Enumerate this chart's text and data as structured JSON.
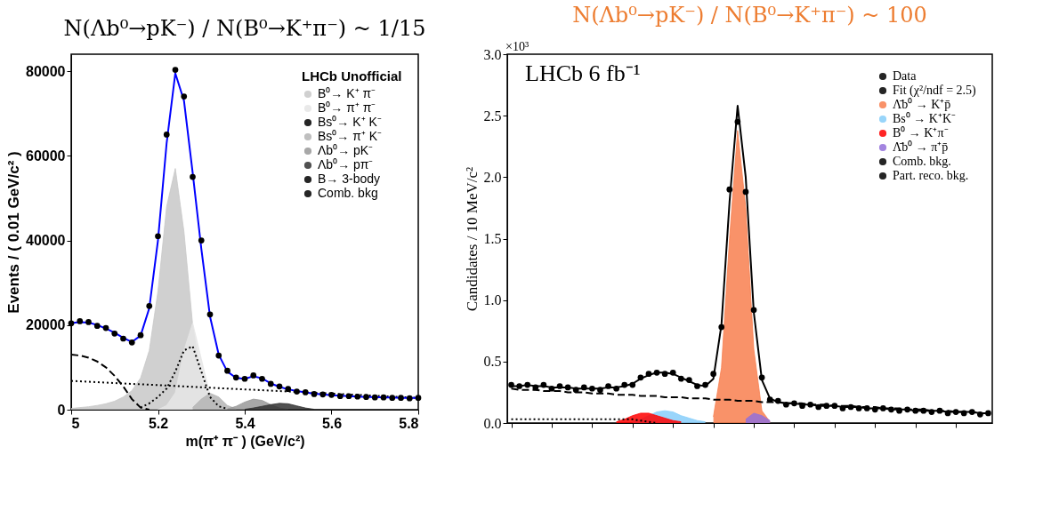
{
  "chart_data": [
    {
      "type": "line",
      "title": "N(Λb⁰→pK⁻) / N(B⁰→K⁺π⁻) ~ 1/15",
      "xlabel": "m(π⁺ π⁻ ) (GeV/c²)",
      "ylabel": "Events / ( 0.01 GeV/c² )",
      "legend_title": "LHCb Unofficial",
      "x": [
        5.0,
        5.02,
        5.04,
        5.06,
        5.08,
        5.1,
        5.12,
        5.14,
        5.16,
        5.18,
        5.2,
        5.22,
        5.24,
        5.26,
        5.28,
        5.3,
        5.32,
        5.34,
        5.36,
        5.38,
        5.4,
        5.42,
        5.44,
        5.46,
        5.48,
        5.5,
        5.52,
        5.54,
        5.56,
        5.58,
        5.6,
        5.62,
        5.64,
        5.66,
        5.68,
        5.7,
        5.72,
        5.74,
        5.76,
        5.78,
        5.8
      ],
      "series": [
        {
          "name": "B⁰→ K⁺ π⁻",
          "type": "area",
          "color": "#c8c8c8",
          "x": [
            5.0,
            5.02,
            5.04,
            5.06,
            5.08,
            5.1,
            5.12,
            5.14,
            5.16,
            5.18,
            5.2,
            5.22,
            5.24,
            5.26,
            5.28,
            5.3,
            5.32,
            5.34,
            5.36
          ],
          "values": [
            300,
            500,
            700,
            1000,
            1400,
            2000,
            3000,
            4500,
            7500,
            14000,
            28000,
            48000,
            57000,
            42000,
            20000,
            7000,
            2000,
            500,
            100
          ]
        },
        {
          "name": "B⁰→ π⁺ π⁻",
          "type": "area",
          "color": "#e6e6e6",
          "x": [
            5.2,
            5.22,
            5.24,
            5.26,
            5.28,
            5.3,
            5.32,
            5.34,
            5.36
          ],
          "values": [
            0,
            1000,
            4000,
            14000,
            20500,
            12000,
            3500,
            700,
            100
          ]
        },
        {
          "name": "Bs⁰→ K⁺ K⁻",
          "type": "line",
          "line_style": "dotted",
          "color": "#000000",
          "x": [
            5.16,
            5.18,
            5.2,
            5.22,
            5.24,
            5.26,
            5.28,
            5.3,
            5.32,
            5.34,
            5.36
          ],
          "values": [
            500,
            1500,
            3000,
            5000,
            9000,
            14000,
            15000,
            9000,
            3000,
            800,
            200
          ]
        },
        {
          "name": "Bs⁰→ π⁺ K⁻",
          "type": "area",
          "color": "#b4b4b4",
          "x": [
            5.28,
            5.3,
            5.32,
            5.34,
            5.36,
            5.38
          ],
          "values": [
            500,
            2500,
            3900,
            3000,
            1000,
            200
          ]
        },
        {
          "name": "Λb⁰→ pK⁻",
          "type": "area",
          "color": "#999999",
          "x": [
            5.36,
            5.38,
            5.4,
            5.42,
            5.44,
            5.46,
            5.48,
            5.5
          ],
          "values": [
            200,
            800,
            1800,
            2500,
            2200,
            1200,
            400,
            100
          ]
        },
        {
          "name": "Λb⁰→ pπ⁻",
          "type": "area",
          "color": "#333333",
          "x": [
            5.4,
            5.42,
            5.44,
            5.46,
            5.48,
            5.5,
            5.52,
            5.54,
            5.56
          ],
          "values": [
            100,
            400,
            800,
            1200,
            1500,
            1400,
            900,
            400,
            100
          ]
        },
        {
          "name": "B→ 3-body",
          "type": "line",
          "line_style": "dashed",
          "color": "#000000",
          "x": [
            5.0,
            5.02,
            5.04,
            5.06,
            5.08,
            5.1,
            5.12,
            5.14,
            5.16,
            5.18
          ],
          "values": [
            13000,
            12800,
            12300,
            11400,
            10000,
            8000,
            5500,
            2500,
            500,
            0
          ]
        },
        {
          "name": "Comb. bkg",
          "type": "line",
          "line_style": "dotted",
          "color": "#000000",
          "x": [
            5.0,
            5.8
          ],
          "values": [
            6800,
            2800
          ]
        },
        {
          "type": "line",
          "color": "#0000ff",
          "values": [
            20500,
            20700,
            20600,
            20000,
            19200,
            18200,
            17000,
            16000,
            17500,
            24000,
            40000,
            63000,
            79500,
            73000,
            56000,
            38000,
            22000,
            13000,
            9000,
            7500,
            7300,
            7900,
            7400,
            6200,
            5400,
            4800,
            4400,
            4100,
            3800,
            3600,
            3400,
            3300,
            3200,
            3100,
            3000,
            3000,
            2900,
            2900,
            2800,
            2800,
            2800
          ]
        },
        {
          "type": "scatter",
          "color": "#000000",
          "values": [
            20400,
            20900,
            20700,
            19800,
            19300,
            18000,
            16800,
            15900,
            17600,
            24500,
            41000,
            65000,
            80300,
            74000,
            55000,
            40000,
            22500,
            12800,
            9200,
            7600,
            7300,
            8100,
            7300,
            6100,
            5500,
            4900,
            4300,
            4100,
            3700,
            3600,
            3500,
            3200,
            3200,
            3100,
            3000,
            2900,
            2900,
            2800,
            2800,
            2700,
            2800
          ]
        }
      ],
      "xlim": [
        5,
        5.8
      ],
      "xticks": [
        5,
        5.2,
        5.4,
        5.6,
        5.8
      ],
      "ylim": [
        0,
        84000
      ],
      "yticks": [
        0,
        20000,
        40000,
        60000,
        80000
      ],
      "legend": "top right",
      "grid": false
    },
    {
      "type": "line",
      "title": "N(Λb⁰→pK⁻) / N(B⁰→K⁺π⁻) ~ 100",
      "ylabel": "Candidates / 10 MeV/c²",
      "annotations": [
        "LHCb 6 fb⁻¹",
        "×10³"
      ],
      "categories": [
        null,
        null,
        null,
        null,
        null,
        null,
        null,
        null,
        null,
        null,
        null,
        null,
        null,
        null,
        null,
        null,
        null,
        null,
        null,
        null,
        null,
        null,
        null,
        null,
        null,
        null,
        null,
        null,
        null,
        null,
        null,
        null,
        null,
        null,
        null,
        null,
        null,
        null,
        null,
        null,
        null,
        null,
        null,
        null,
        null,
        null,
        null,
        null,
        null,
        null,
        null,
        null,
        null,
        null,
        null,
        null,
        null,
        null,
        null,
        null
      ],
      "series": [
        {
          "name": "Data",
          "type": "scatter",
          "color": "#000000",
          "values": [
            0.31,
            0.3,
            0.31,
            0.29,
            0.31,
            0.28,
            0.3,
            0.29,
            0.27,
            0.29,
            0.28,
            0.27,
            0.3,
            0.28,
            0.31,
            0.31,
            0.37,
            0.4,
            0.41,
            0.4,
            0.41,
            0.36,
            0.35,
            0.3,
            0.31,
            0.4,
            0.78,
            1.9,
            2.45,
            1.88,
            0.92,
            0.37,
            0.19,
            0.18,
            0.15,
            0.16,
            0.14,
            0.15,
            0.13,
            0.14,
            0.14,
            0.12,
            0.13,
            0.12,
            0.12,
            0.11,
            0.12,
            0.11,
            0.1,
            0.11,
            0.1,
            0.1,
            0.09,
            0.1,
            0.08,
            0.09,
            0.08,
            0.09,
            0.07,
            0.08
          ]
        },
        {
          "name": "Fit (χ²/ndf = 2.5)",
          "type": "line",
          "color": "#000000",
          "values": [
            0.3,
            0.3,
            0.31,
            0.3,
            0.3,
            0.29,
            0.29,
            0.29,
            0.28,
            0.28,
            0.28,
            0.28,
            0.29,
            0.29,
            0.3,
            0.32,
            0.36,
            0.39,
            0.41,
            0.41,
            0.4,
            0.37,
            0.34,
            0.31,
            0.3,
            0.36,
            0.8,
            1.8,
            2.58,
            2.0,
            0.9,
            0.35,
            0.2,
            0.17,
            0.16,
            0.16,
            0.15,
            0.15,
            0.14,
            0.14,
            0.14,
            0.13,
            0.13,
            0.13,
            0.12,
            0.12,
            0.12,
            0.11,
            0.11,
            0.11,
            0.1,
            0.1,
            0.1,
            0.1,
            0.09,
            0.09,
            0.09,
            0.09,
            0.08,
            0.08
          ]
        },
        {
          "name": "Λ̄b⁰ → K⁺p̄",
          "type": "area",
          "color": "#f87f4f",
          "values": [
            null,
            null,
            null,
            null,
            null,
            null,
            null,
            null,
            null,
            null,
            null,
            null,
            null,
            null,
            null,
            null,
            null,
            null,
            null,
            null,
            null,
            null,
            null,
            null,
            null,
            0.05,
            0.45,
            1.5,
            2.38,
            1.75,
            0.6,
            0.1,
            0.01,
            null,
            null,
            null,
            null,
            null,
            null,
            null,
            null,
            null,
            null,
            null,
            null,
            null,
            null,
            null,
            null,
            null,
            null,
            null,
            null,
            null,
            null,
            null,
            null,
            null,
            null,
            null
          ]
        },
        {
          "name": "Bs⁰ → K⁺K⁻",
          "type": "area",
          "color": "#87cefa",
          "values": [
            null,
            null,
            null,
            null,
            null,
            null,
            null,
            null,
            null,
            null,
            null,
            null,
            null,
            null,
            null,
            0.01,
            0.03,
            0.06,
            0.09,
            0.1,
            0.09,
            0.06,
            0.04,
            0.02,
            0.01,
            null,
            null,
            null,
            null,
            null,
            null,
            null,
            null,
            null,
            null,
            null,
            null,
            null,
            null,
            null,
            null,
            null,
            null,
            null,
            null,
            null,
            null,
            null,
            null,
            null,
            null,
            null,
            null,
            null,
            null,
            null,
            null,
            null,
            null,
            null
          ]
        },
        {
          "name": "B⁰ → K⁺π⁻",
          "type": "area",
          "color": "#ff0000",
          "values": [
            null,
            null,
            null,
            null,
            null,
            null,
            null,
            null,
            null,
            null,
            null,
            null,
            null,
            0.01,
            0.03,
            0.06,
            0.08,
            0.08,
            0.06,
            0.04,
            0.02,
            0.01,
            null,
            null,
            null,
            null,
            null,
            null,
            null,
            null,
            null,
            null,
            null,
            null,
            null,
            null,
            null,
            null,
            null,
            null,
            null,
            null,
            null,
            null,
            null,
            null,
            null,
            null,
            null,
            null,
            null,
            null,
            null,
            null,
            null,
            null,
            null,
            null,
            null,
            null
          ]
        },
        {
          "name": "Λ̄b⁰ → π⁺p̄",
          "type": "area",
          "color": "#9370db",
          "values": [
            null,
            null,
            null,
            null,
            null,
            null,
            null,
            null,
            null,
            null,
            null,
            null,
            null,
            null,
            null,
            null,
            null,
            null,
            null,
            null,
            null,
            null,
            null,
            null,
            null,
            null,
            null,
            null,
            null,
            0.03,
            0.08,
            0.06,
            0.02,
            null,
            null,
            null,
            null,
            null,
            null,
            null,
            null,
            null,
            null,
            null,
            null,
            null,
            null,
            null,
            null,
            null,
            null,
            null,
            null,
            null,
            null,
            null,
            null,
            null,
            null,
            null
          ]
        },
        {
          "name": "Comb. bkg.",
          "type": "line",
          "line_style": "dashed",
          "color": "#000000",
          "values": [
            0.28,
            0.27,
            0.27,
            0.27,
            0.26,
            0.26,
            0.26,
            0.25,
            0.25,
            0.25,
            0.24,
            0.24,
            0.24,
            0.23,
            0.23,
            0.23,
            0.22,
            0.22,
            0.22,
            0.21,
            0.21,
            0.21,
            0.2,
            0.2,
            0.2,
            0.19,
            0.19,
            0.19,
            0.18,
            0.18,
            0.18,
            0.17,
            0.17,
            0.17,
            0.16,
            0.16,
            0.16,
            0.15,
            0.15,
            0.15,
            0.14,
            0.14,
            0.14,
            0.13,
            0.13,
            0.13,
            0.12,
            0.12,
            0.12,
            0.11,
            0.11,
            0.11,
            0.1,
            0.1,
            0.1,
            0.09,
            0.09,
            0.09,
            0.08,
            0.08
          ]
        },
        {
          "name": "Part. reco. bkg.",
          "type": "line",
          "line_style": "dotted",
          "color": "#000000",
          "values": [
            0.03,
            0.03,
            0.03,
            0.03,
            0.03,
            0.03,
            0.03,
            0.03,
            0.03,
            0.03,
            0.03,
            0.03,
            0.03,
            0.03,
            0.03,
            0.03,
            0.02,
            0.01,
            0.0,
            null,
            null,
            null,
            null,
            null,
            null,
            null,
            null,
            null,
            null,
            null,
            null,
            null,
            null,
            null,
            null,
            null,
            null,
            null,
            null,
            null,
            null,
            null,
            null,
            null,
            null,
            null,
            null,
            null,
            null,
            null,
            null,
            null,
            null,
            null,
            null,
            null,
            null,
            null,
            null,
            null
          ]
        }
      ],
      "ylim": [
        0,
        3.0
      ],
      "yticks": [
        {
          "value": 0,
          "label": "0.0"
        },
        0.5,
        {
          "value": 1,
          "label": "1.0"
        },
        1.5,
        {
          "value": 2,
          "label": "2.0"
        },
        2.5,
        {
          "value": 3,
          "label": "3.0"
        }
      ],
      "tick_labels": "y",
      "legend": "top right",
      "grid": false
    }
  ]
}
